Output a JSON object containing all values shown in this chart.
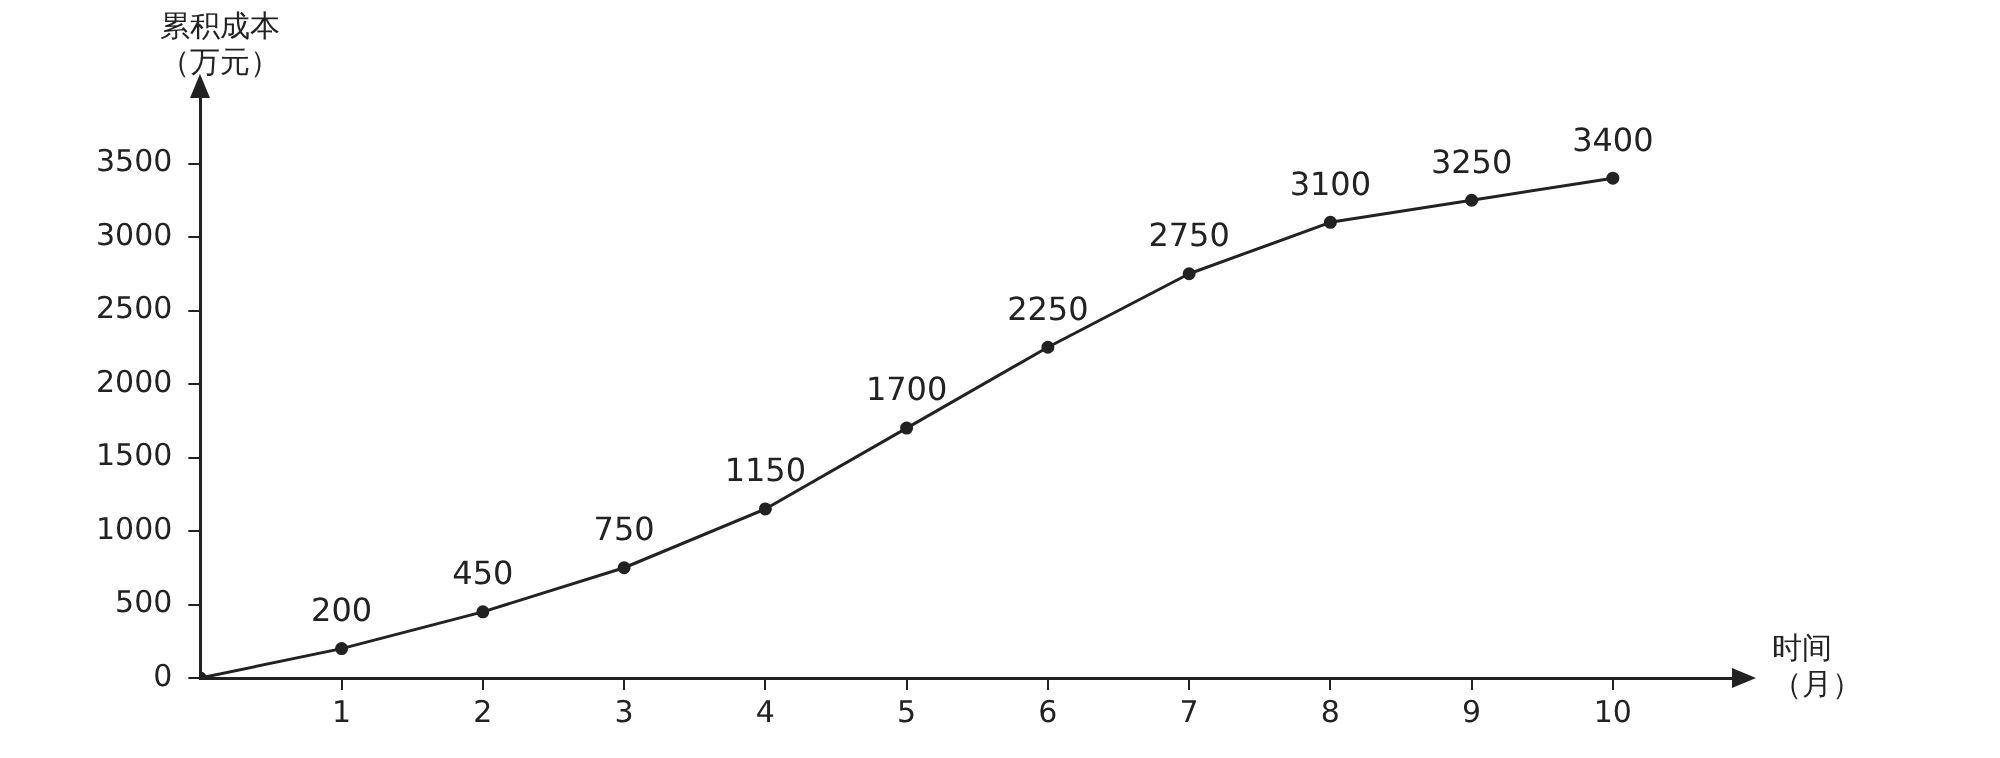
{
  "chart_data": {
    "type": "line",
    "xlabel": "时间（月）",
    "ylabel": "累积成本（万元）",
    "x": [
      0,
      1,
      2,
      3,
      4,
      5,
      6,
      7,
      8,
      9,
      10
    ],
    "values": [
      0,
      200,
      450,
      750,
      1150,
      1700,
      2250,
      2750,
      3100,
      3250,
      3400
    ],
    "value_labels": [
      null,
      "200",
      "450",
      "750",
      "1150",
      "1700",
      "2250",
      "2750",
      "3100",
      "3250",
      "3400"
    ],
    "color": "#222222",
    "marker": "circle",
    "line_style": "solid",
    "grid": false,
    "legend": false,
    "xlim": [
      0,
      10.9
    ],
    "xticks": [
      1,
      2,
      3,
      4,
      5,
      6,
      7,
      8,
      9,
      10
    ],
    "ylim": [
      0,
      4000
    ],
    "yticks": [
      0,
      500,
      1000,
      1500,
      2000,
      2500,
      3000,
      3500
    ]
  }
}
